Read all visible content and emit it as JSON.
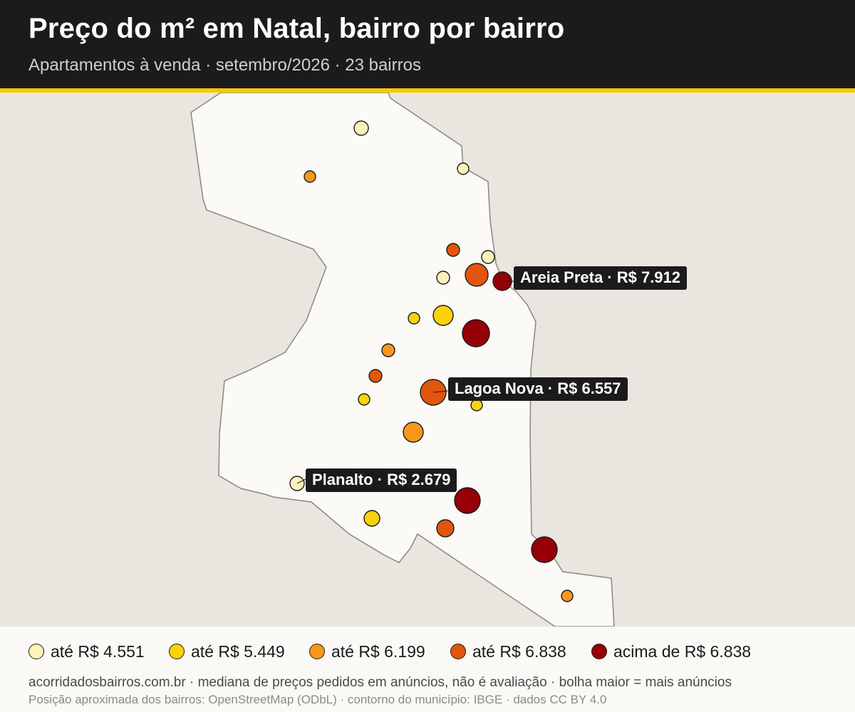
{
  "header": {
    "title": "Preço do m² em Natal, bairro por bairro",
    "subtitle": "Apartamentos à venda · setembro/2026 · 23 bairros"
  },
  "map": {
    "colors": {
      "background": "#e9e6e0",
      "municipality_fill": "#fbfaf7",
      "municipality_stroke": "#8a8780",
      "header": "#1b1b1b",
      "accent": "#f5c900"
    },
    "callouts": [
      {
        "text": "Areia Preta · R$ 7.912",
        "bairro": "Areia Preta",
        "price": 7912
      },
      {
        "text": "Lagoa Nova · R$ 6.557",
        "bairro": "Lagoa Nova",
        "price": 6557
      },
      {
        "text": "Planalto · R$ 2.679",
        "bairro": "Planalto",
        "price": 2679
      }
    ]
  },
  "legend": {
    "items": [
      {
        "label": "até R$ 4.551",
        "color": "#fdf3b9"
      },
      {
        "label": "até R$ 5.449",
        "color": "#fbd20a"
      },
      {
        "label": "até R$ 6.199",
        "color": "#f9961c"
      },
      {
        "label": "até R$ 6.838",
        "color": "#e2550d"
      },
      {
        "label": "acima de R$ 6.838",
        "color": "#960006"
      }
    ]
  },
  "footer": {
    "source_line": "acorridadosbairros.com.br · mediana de preços pedidos em anúncios, não é avaliação · bolha maior = mais anúncios",
    "credits_line": "Posição aproximada dos bairros: OpenStreetMap (ODbL) · contorno do município: IBGE · dados CC BY 4.0"
  }
}
